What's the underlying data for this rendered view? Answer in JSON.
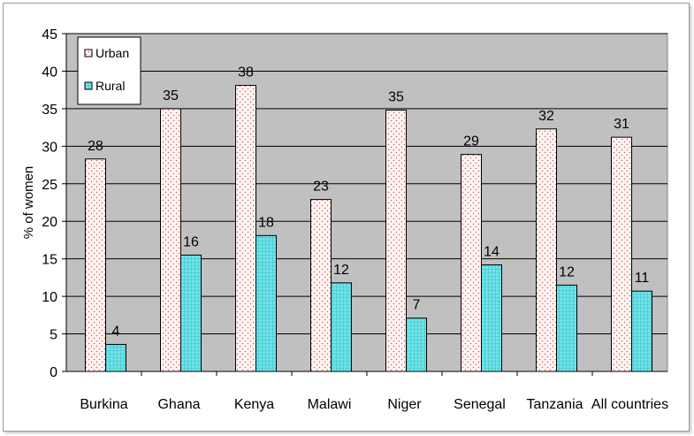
{
  "chart_data": {
    "type": "bar",
    "title": "",
    "xlabel": "",
    "ylabel": "% of women",
    "ylim": [
      0,
      45
    ],
    "ytick_step": 5,
    "grid": true,
    "legend_position": "top-left",
    "categories": [
      "Burkina",
      "Ghana",
      "Kenya",
      "Malawi",
      "Niger",
      "Senegal",
      "Tanzania",
      "All countries"
    ],
    "series": [
      {
        "name": "Urban",
        "values": [
          28.3,
          35.0,
          38.1,
          22.9,
          34.8,
          28.9,
          32.3,
          31.2
        ],
        "labels": [
          "28",
          "35",
          "38",
          "23",
          "35",
          "29",
          "32",
          "31"
        ],
        "color": "#fff2f0"
      },
      {
        "name": "Rural",
        "values": [
          3.6,
          15.5,
          18.1,
          11.8,
          7.1,
          14.2,
          11.5,
          10.7
        ],
        "labels": [
          "4",
          "16",
          "18",
          "12",
          "7",
          "14",
          "12",
          "11"
        ],
        "color": "#66e0e6"
      }
    ]
  }
}
